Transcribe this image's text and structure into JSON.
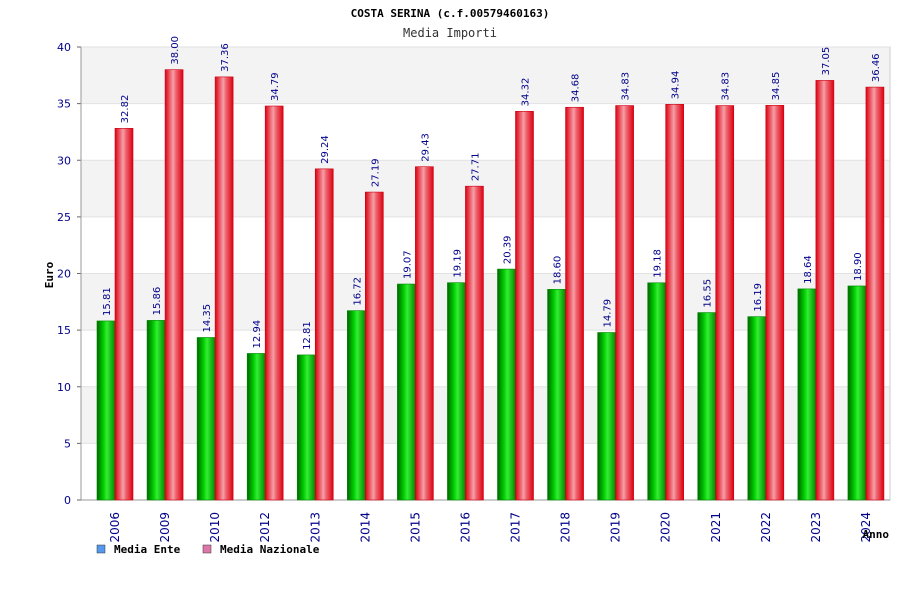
{
  "chart_data": {
    "type": "bar",
    "title": "COSTA SERINA (c.f.00579460163)",
    "subtitle": "Media Importi",
    "xlabel": "Anno",
    "ylabel": "Euro",
    "ylim": [
      0,
      40
    ],
    "yticks": [
      "0",
      "5",
      "10",
      "15",
      "20",
      "25",
      "30",
      "35",
      "40"
    ],
    "categories": [
      "2006",
      "2009",
      "2010",
      "2012",
      "2013",
      "2014",
      "2015",
      "2016",
      "2017",
      "2018",
      "2019",
      "2020",
      "2021",
      "2022",
      "2023",
      "2024"
    ],
    "series": [
      {
        "name": "Media Ente",
        "color": "#00bb00",
        "legend_color": "#5599ee",
        "values": [
          15.81,
          15.86,
          14.35,
          12.94,
          12.81,
          16.72,
          19.07,
          19.19,
          20.39,
          18.6,
          14.79,
          19.18,
          16.55,
          16.19,
          18.64,
          18.9
        ],
        "labels": [
          "15.81",
          "15.86",
          "14.35",
          "12.94",
          "12.81",
          "16.72",
          "19.07",
          "19.19",
          "20.39",
          "18.60",
          "14.79",
          "19.18",
          "16.55",
          "16.19",
          "18.64",
          "18.90"
        ]
      },
      {
        "name": "Media Nazionale",
        "color": "#ee1122",
        "legend_color": "#dd77aa",
        "values": [
          32.82,
          38.0,
          37.36,
          34.79,
          29.24,
          27.19,
          29.43,
          27.71,
          34.32,
          34.68,
          34.83,
          34.94,
          34.83,
          34.85,
          37.05,
          36.46
        ],
        "labels": [
          "32.82",
          "38.00",
          "37.36",
          "34.79",
          "29.24",
          "27.19",
          "29.43",
          "27.71",
          "34.32",
          "34.68",
          "34.83",
          "34.94",
          "34.83",
          "34.85",
          "37.05",
          "36.46"
        ]
      }
    ],
    "grid": true,
    "legend": "bottom-left"
  }
}
